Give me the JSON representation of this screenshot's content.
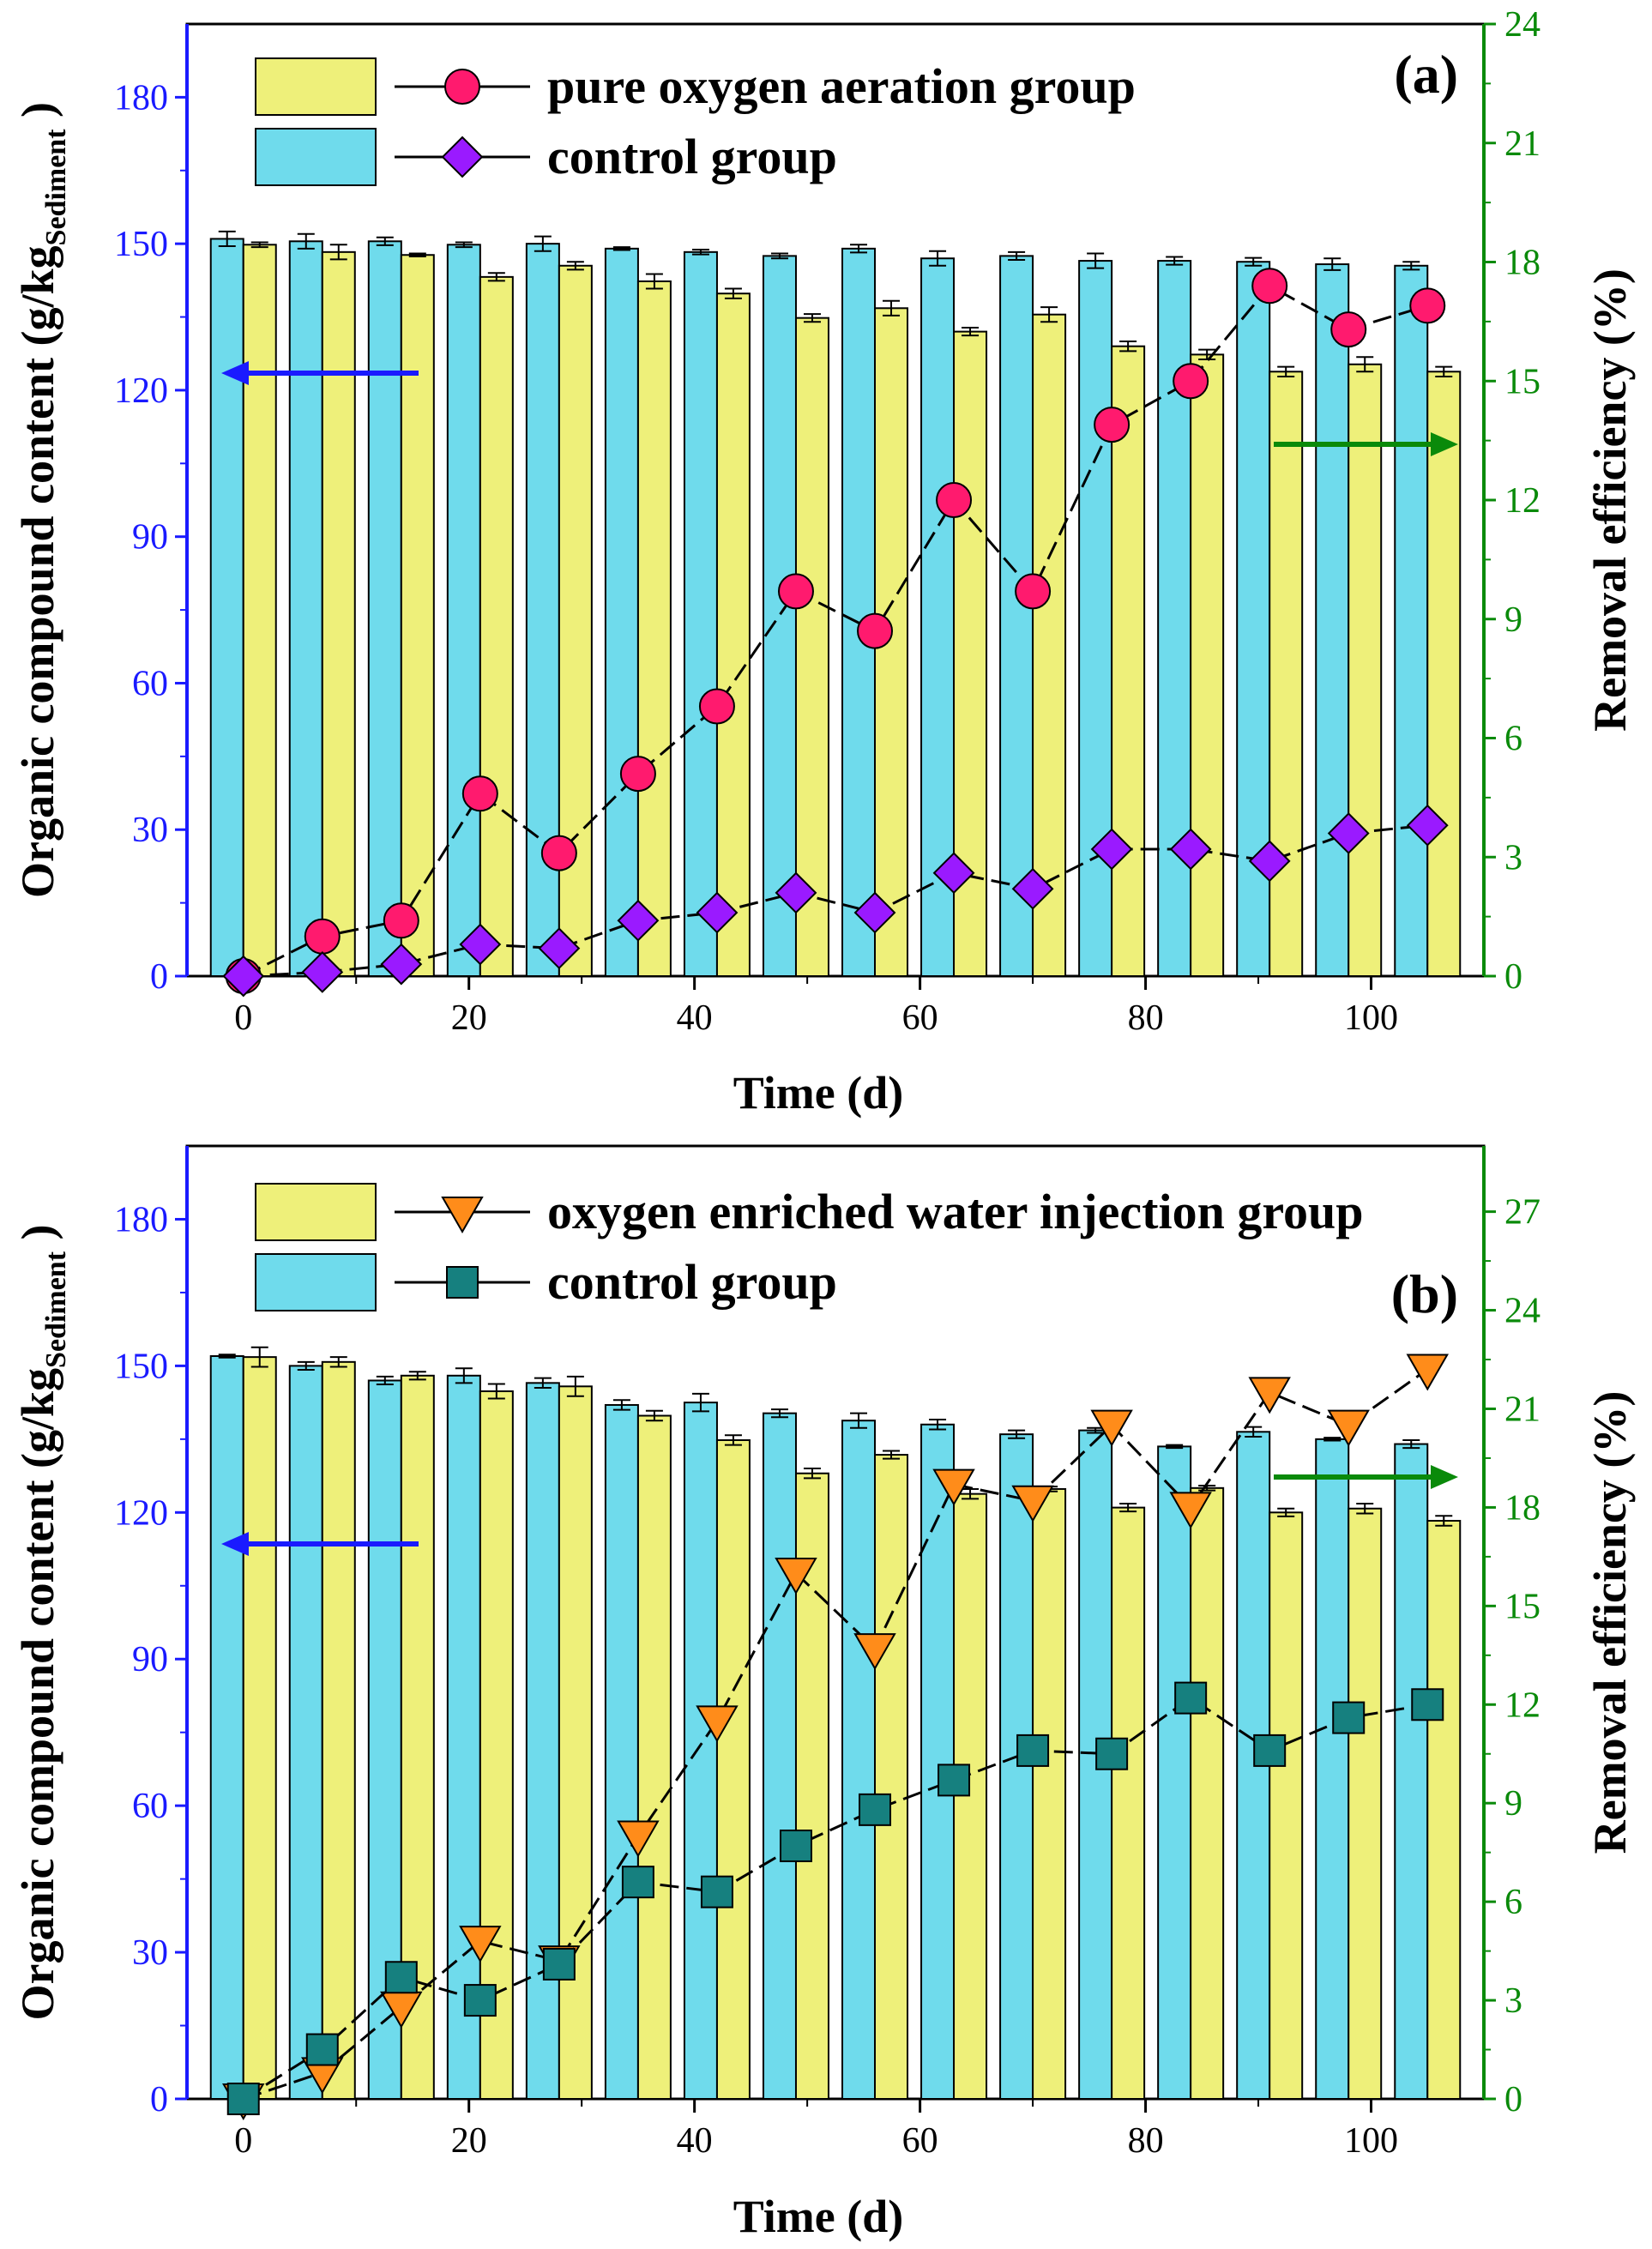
{
  "chart_data": [
    {
      "type": "bar",
      "panel_label": "(a)",
      "title": "",
      "xlabel": "Time (d)",
      "ylabel_main": "Organic compound content (g/kg",
      "ylabel_sub": "Sediment",
      "ylabel_close": " )",
      "y2label": "Removal efficiency (%)",
      "xlim": [
        -5,
        110
      ],
      "ylim": [
        0,
        195
      ],
      "y2lim": [
        0,
        24
      ],
      "x_ticks": [
        0,
        20,
        40,
        60,
        80,
        100
      ],
      "x_tick_labels": [
        "0",
        "20",
        "40",
        "60",
        "80",
        "100"
      ],
      "y_ticks": [
        0,
        30,
        60,
        90,
        120,
        150,
        180
      ],
      "y_tick_labels": [
        "0",
        "30",
        "60",
        "90",
        "120",
        "150",
        "180"
      ],
      "y2_ticks": [
        0,
        3,
        6,
        9,
        12,
        15,
        18,
        21,
        24
      ],
      "y2_tick_labels": [
        "0",
        "3",
        "6",
        "9",
        "12",
        "15",
        "18",
        "21",
        "24"
      ],
      "colors": {
        "treatment_bar": "#eef07a",
        "control_bar": "#6fdbec",
        "treatment_marker": "#ff1a6e",
        "control_marker": "#9a1aff",
        "left_axis": "#1a1aff",
        "right_axis": "#0a8a0a"
      },
      "x": [
        0,
        7,
        14,
        21,
        28,
        35,
        42,
        49,
        56,
        63,
        70,
        77,
        84,
        91,
        98,
        105
      ],
      "bar_series": [
        {
          "name": "control group",
          "values": [
            151,
            150.5,
            150.5,
            149.8,
            150,
            149,
            148.3,
            147.5,
            149,
            147,
            147.5,
            146.5,
            146.5,
            146.3,
            145.8,
            145.5
          ],
          "errors": [
            1.5,
            1.5,
            0.8,
            0.5,
            1.5,
            0.3,
            0.5,
            0.5,
            0.8,
            1.5,
            0.8,
            1.5,
            0.8,
            0.8,
            1.2,
            0.8
          ]
        },
        {
          "name": "pure oxygen aeration group",
          "values": [
            149.8,
            148.3,
            147.7,
            143.2,
            145.5,
            142.3,
            139.8,
            134.8,
            136.8,
            132,
            135.5,
            129,
            127.3,
            123.8,
            125.3,
            123.8
          ],
          "errors": [
            0.5,
            1.5,
            0.3,
            0.8,
            0.8,
            1.5,
            1.0,
            0.8,
            1.5,
            0.8,
            1.5,
            1.0,
            1.0,
            1.0,
            1.5,
            1.0
          ]
        }
      ],
      "line_series": [
        {
          "name": "pure oxygen aeration group",
          "marker": "circle",
          "values": [
            0,
            1.0,
            1.4,
            4.6,
            3.1,
            5.1,
            6.8,
            9.7,
            8.7,
            12.0,
            9.7,
            13.9,
            15.0,
            17.4,
            16.3,
            16.9
          ]
        },
        {
          "name": "control group",
          "marker": "diamond",
          "values": [
            0,
            0.1,
            0.3,
            0.8,
            0.7,
            1.4,
            1.6,
            2.1,
            1.6,
            2.6,
            2.2,
            3.2,
            3.2,
            2.9,
            3.6,
            3.8
          ]
        }
      ],
      "legend": [
        "pure oxygen aeration group",
        "control group"
      ]
    },
    {
      "type": "bar",
      "panel_label": "(b)",
      "title": "",
      "xlabel": "Time (d)",
      "ylabel_main": "Organic compound content (g/kg",
      "ylabel_sub": "Sediment",
      "ylabel_close": " )",
      "y2label": "Removal efficiency (%)",
      "xlim": [
        -5,
        110
      ],
      "ylim": [
        0,
        195
      ],
      "y2lim": [
        0,
        29
      ],
      "x_ticks": [
        0,
        20,
        40,
        60,
        80,
        100
      ],
      "x_tick_labels": [
        "0",
        "20",
        "40",
        "60",
        "80",
        "100"
      ],
      "y_ticks": [
        0,
        30,
        60,
        90,
        120,
        150,
        180
      ],
      "y_tick_labels": [
        "0",
        "30",
        "60",
        "90",
        "120",
        "150",
        "180"
      ],
      "y2_ticks": [
        0,
        3,
        6,
        9,
        12,
        15,
        18,
        21,
        24,
        27
      ],
      "y2_tick_labels": [
        "0",
        "3",
        "6",
        "9",
        "12",
        "15",
        "18",
        "21",
        "24",
        "27"
      ],
      "colors": {
        "treatment_bar": "#eef07a",
        "control_bar": "#6fdbec",
        "treatment_marker": "#ff8c1a",
        "control_marker": "#16807f",
        "left_axis": "#1a1aff",
        "right_axis": "#0a8a0a"
      },
      "x": [
        0,
        7,
        14,
        21,
        28,
        35,
        42,
        49,
        56,
        63,
        70,
        77,
        84,
        91,
        98,
        105
      ],
      "bar_series": [
        {
          "name": "control group",
          "values": [
            152,
            150,
            147,
            148,
            146.5,
            142,
            142.5,
            140.3,
            138.8,
            138,
            136,
            136.8,
            133.5,
            136.5,
            135,
            134
          ],
          "errors": [
            0.3,
            0.8,
            0.8,
            1.5,
            1.0,
            1.0,
            1.8,
            0.8,
            1.5,
            1.0,
            0.8,
            0.5,
            0.3,
            1.0,
            0.3,
            0.8
          ]
        },
        {
          "name": "oxygen enriched water injection group",
          "values": [
            151.8,
            150.8,
            148,
            144.8,
            145.8,
            139.8,
            134.8,
            128,
            131.8,
            123.8,
            124.8,
            121,
            125,
            120,
            120.8,
            118.3
          ],
          "errors": [
            2.0,
            1.0,
            0.8,
            1.5,
            2.0,
            1.0,
            1.0,
            1.0,
            0.8,
            1.0,
            0.5,
            0.8,
            0.5,
            0.8,
            1.0,
            1.0
          ]
        }
      ],
      "line_series": [
        {
          "name": "oxygen enriched water injection group",
          "marker": "triangle-down",
          "values": [
            0,
            0.8,
            2.8,
            4.8,
            4.2,
            8.0,
            11.5,
            16.0,
            13.7,
            18.7,
            18.2,
            20.5,
            18.0,
            21.5,
            20.5,
            22.2
          ]
        },
        {
          "name": "control group",
          "marker": "square",
          "values": [
            0,
            1.5,
            3.7,
            3.0,
            4.1,
            6.6,
            6.3,
            7.7,
            8.8,
            9.7,
            10.6,
            10.5,
            12.2,
            10.6,
            11.6,
            12.0
          ]
        }
      ],
      "legend": [
        "oxygen enriched water injection group",
        "control group"
      ]
    }
  ]
}
